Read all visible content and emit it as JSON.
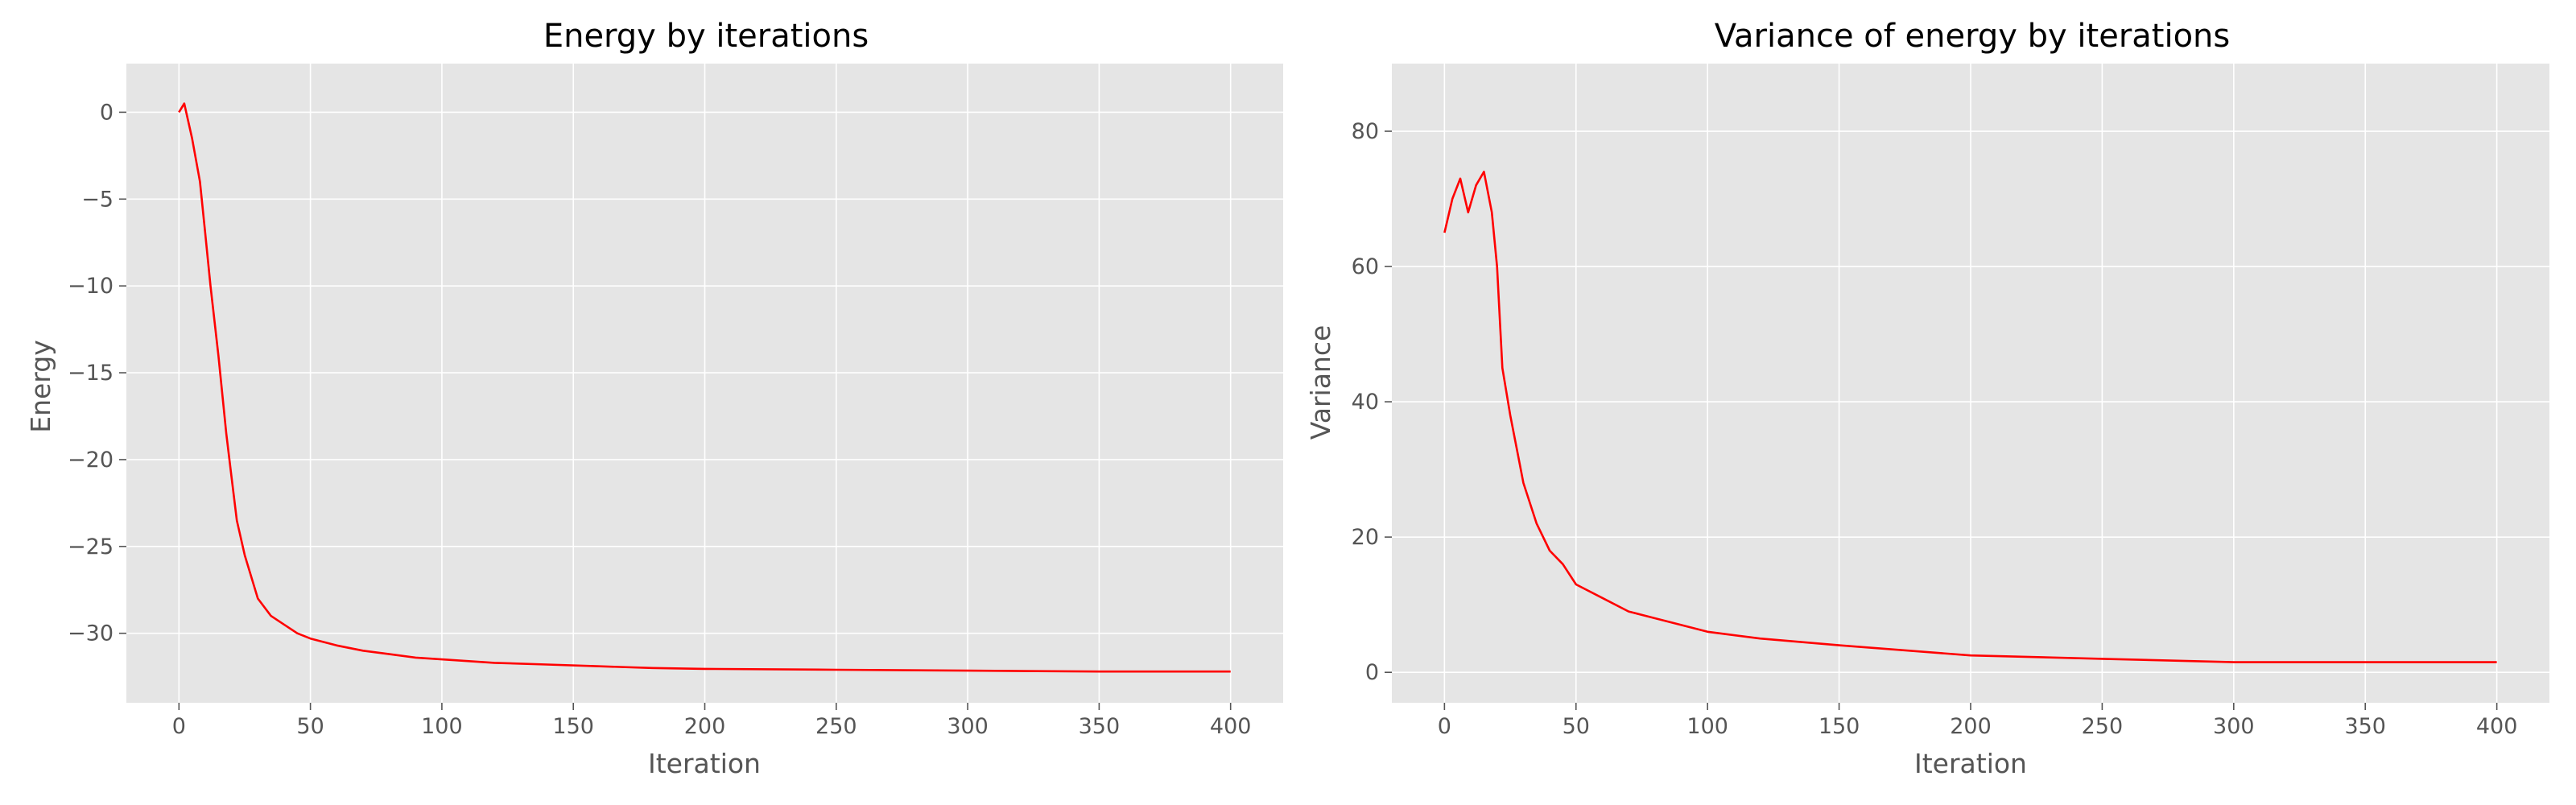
{
  "chart_data": [
    {
      "type": "line",
      "title": "Energy by iterations",
      "xlabel": "Iteration",
      "ylabel": "Energy",
      "xlim": [
        -20,
        420
      ],
      "ylim": [
        -34,
        2.8
      ],
      "xticks": [
        0,
        50,
        100,
        150,
        200,
        250,
        300,
        350,
        400
      ],
      "yticks": [
        0,
        -5,
        -10,
        -15,
        -20,
        -25,
        -30
      ],
      "ytick_labels": [
        "0",
        "−5",
        "−10",
        "−15",
        "−20",
        "−25",
        "−30"
      ],
      "grid": true,
      "line_color": "#ff0000",
      "x": [
        0,
        2,
        5,
        8,
        10,
        12,
        15,
        18,
        20,
        22,
        25,
        28,
        30,
        35,
        40,
        45,
        50,
        55,
        60,
        70,
        80,
        90,
        100,
        120,
        140,
        160,
        180,
        200,
        250,
        300,
        350,
        400
      ],
      "y": [
        0,
        0.5,
        -1.5,
        -4,
        -7,
        -10,
        -14,
        -18.5,
        -21,
        -23.5,
        -25.5,
        -27,
        -28,
        -29,
        -29.5,
        -30,
        -30.3,
        -30.5,
        -30.7,
        -31,
        -31.2,
        -31.4,
        -31.5,
        -31.7,
        -31.8,
        -31.9,
        -32.0,
        -32.05,
        -32.1,
        -32.15,
        -32.2,
        -32.2
      ]
    },
    {
      "type": "line",
      "title": "Variance of energy by iterations",
      "xlabel": "Iteration",
      "ylabel": "Variance",
      "xlim": [
        -20,
        420
      ],
      "ylim": [
        -4.5,
        90
      ],
      "xticks": [
        0,
        50,
        100,
        150,
        200,
        250,
        300,
        350,
        400
      ],
      "yticks": [
        0,
        20,
        40,
        60,
        80
      ],
      "ytick_labels": [
        "0",
        "20",
        "40",
        "60",
        "80"
      ],
      "grid": true,
      "line_color": "#ff0000",
      "x": [
        0,
        3,
        6,
        9,
        12,
        15,
        18,
        20,
        22,
        25,
        28,
        30,
        35,
        40,
        45,
        50,
        60,
        70,
        80,
        90,
        100,
        120,
        150,
        200,
        250,
        300,
        350,
        400
      ],
      "y": [
        65,
        70,
        73,
        68,
        72,
        74,
        68,
        60,
        45,
        38,
        32,
        28,
        22,
        18,
        16,
        13,
        11,
        9,
        8,
        7,
        6,
        5,
        4,
        2.5,
        2,
        1.5,
        1.5,
        1.5
      ]
    }
  ]
}
